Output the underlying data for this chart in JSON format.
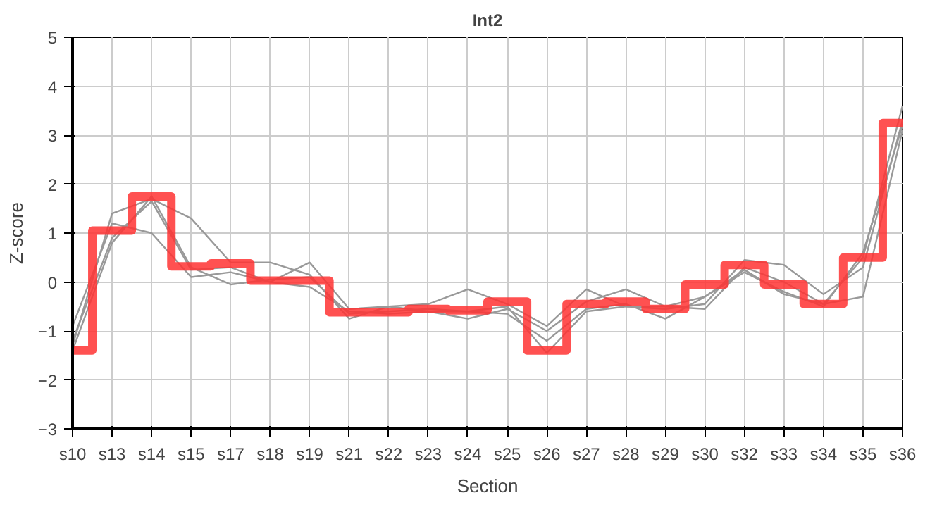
{
  "chart_data": {
    "type": "line",
    "title": "Int2",
    "xlabel": "Section",
    "ylabel": "Z-score",
    "categories": [
      "s10",
      "s13",
      "s14",
      "s15",
      "s17",
      "s18",
      "s19",
      "s21",
      "s22",
      "s23",
      "s24",
      "s25",
      "s26",
      "s27",
      "s28",
      "s29",
      "s30",
      "s32",
      "s33",
      "s34",
      "s35",
      "s36"
    ],
    "ylim": [
      -3,
      5
    ],
    "yticks": [
      -3,
      -2,
      -1,
      0,
      1,
      2,
      3,
      4,
      5
    ],
    "grid": true,
    "marker": "none",
    "line_style": "solid",
    "series": [
      {
        "color": "#999999",
        "values": [
          -1.3,
          1.4,
          1.7,
          1.3,
          0.4,
          0.4,
          0.15,
          -0.75,
          -0.5,
          -0.45,
          -0.15,
          -0.45,
          -0.9,
          -0.15,
          -0.5,
          -0.55,
          -0.45,
          0.45,
          0.35,
          -0.25,
          0.3,
          3.3
        ]
      },
      {
        "color": "#999999",
        "values": [
          -0.9,
          1.2,
          1.0,
          0.1,
          0.2,
          0.0,
          0.4,
          -0.55,
          -0.5,
          -0.6,
          -0.75,
          -0.55,
          -1.0,
          -0.4,
          -0.15,
          -0.5,
          -0.55,
          0.3,
          0.0,
          -0.45,
          0.5,
          3.6
        ]
      },
      {
        "color": "#999999",
        "values": [
          -1.4,
          0.8,
          1.75,
          0.3,
          -0.05,
          0.05,
          0.1,
          -0.65,
          -0.6,
          -0.55,
          -0.6,
          -0.65,
          -1.2,
          -0.55,
          -0.45,
          -0.75,
          -0.3,
          0.2,
          -0.2,
          -0.5,
          0.6,
          3.2
        ]
      },
      {
        "color": "#999999",
        "values": [
          -1.2,
          0.9,
          1.65,
          0.25,
          0.3,
          0.0,
          -0.1,
          -0.6,
          -0.65,
          -0.6,
          -0.6,
          -0.5,
          -1.45,
          -0.6,
          -0.5,
          -0.5,
          -0.3,
          0.25,
          -0.25,
          -0.45,
          -0.3,
          3.1
        ]
      },
      {
        "type": "step",
        "color": "#ff3333",
        "values": [
          -1.4,
          1.05,
          1.75,
          0.32,
          0.38,
          0.03,
          0.03,
          -0.62,
          -0.62,
          -0.55,
          -0.58,
          -0.4,
          -1.4,
          -0.45,
          -0.4,
          -0.55,
          -0.05,
          0.35,
          -0.05,
          -0.45,
          0.5,
          3.25
        ]
      }
    ]
  }
}
